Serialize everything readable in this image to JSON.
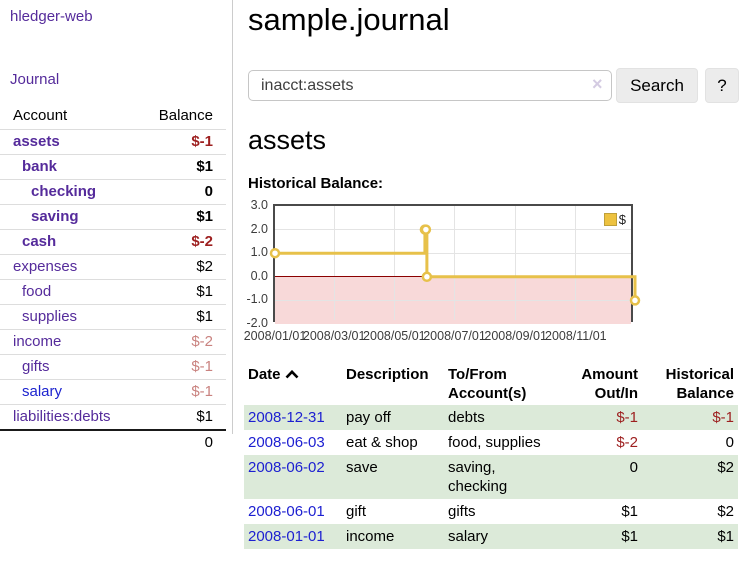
{
  "app": {
    "brand": "hledger-web",
    "nav": {
      "journal": "Journal"
    }
  },
  "sidebar": {
    "columns": {
      "account": "Account",
      "balance": "Balance"
    },
    "accounts": [
      {
        "name": "assets",
        "indent": 1,
        "bold": true,
        "balance": "$-1",
        "balance_style": "neg",
        "link_style": "purple"
      },
      {
        "name": "bank",
        "indent": 2,
        "bold": true,
        "balance": "$1",
        "balance_style": "plain",
        "link_style": "purple"
      },
      {
        "name": "checking",
        "indent": 3,
        "bold": true,
        "balance": "0",
        "balance_style": "plain",
        "link_style": "purple"
      },
      {
        "name": "saving",
        "indent": 3,
        "bold": true,
        "balance": "$1",
        "balance_style": "plain",
        "link_style": "purple"
      },
      {
        "name": "cash",
        "indent": 2,
        "bold": true,
        "balance": "$-2",
        "balance_style": "neg",
        "link_style": "purple"
      },
      {
        "name": "expenses",
        "indent": 1,
        "bold": false,
        "balance": "$2",
        "balance_style": "plain",
        "link_style": "purple"
      },
      {
        "name": "food",
        "indent": 2,
        "bold": false,
        "balance": "$1",
        "balance_style": "plain",
        "link_style": "purple"
      },
      {
        "name": "supplies",
        "indent": 2,
        "bold": false,
        "balance": "$1",
        "balance_style": "plain",
        "link_style": "purple"
      },
      {
        "name": "income",
        "indent": 1,
        "bold": false,
        "balance": "$-2",
        "balance_style": "faded",
        "link_style": "purple"
      },
      {
        "name": "gifts",
        "indent": 2,
        "bold": false,
        "balance": "$-1",
        "balance_style": "faded",
        "link_style": "purple"
      },
      {
        "name": "salary",
        "indent": 2,
        "bold": false,
        "balance": "$-1",
        "balance_style": "faded",
        "link_style": "blue"
      },
      {
        "name": "liabilities:debts",
        "indent": 1,
        "bold": false,
        "balance": "$1",
        "balance_style": "plain",
        "link_style": "purple"
      }
    ],
    "total": "0"
  },
  "header": {
    "title": "sample.journal"
  },
  "search": {
    "value": "inacct:assets",
    "clear_icon": "×",
    "search_button": "Search",
    "help_button": "?"
  },
  "register": {
    "heading": "assets",
    "chart_title": "Historical Balance:",
    "columns": {
      "date": "Date",
      "description": "Description",
      "tofrom": "To/From Account(s)",
      "amount": "Amount Out/In",
      "balance": "Historical Balance"
    },
    "rows": [
      {
        "date": "2008-12-31",
        "description": "pay off",
        "tofrom": "debts",
        "amount": "$-1",
        "balance": "$-1"
      },
      {
        "date": "2008-06-03",
        "description": "eat & shop",
        "tofrom": "food, supplies",
        "amount": "$-2",
        "balance": "0"
      },
      {
        "date": "2008-06-02",
        "description": "save",
        "tofrom": "saving, checking",
        "amount": "0",
        "balance": "$2"
      },
      {
        "date": "2008-06-01",
        "description": "gift",
        "tofrom": "gifts",
        "amount": "$1",
        "balance": "$2"
      },
      {
        "date": "2008-01-01",
        "description": "income",
        "tofrom": "salary",
        "amount": "$1",
        "balance": "$1"
      }
    ]
  },
  "chart_data": {
    "type": "line",
    "step": true,
    "title": "Historical Balance:",
    "series": [
      {
        "name": "$",
        "color": "#E7C14A",
        "points": [
          [
            "2008-01-01",
            1
          ],
          [
            "2008-06-01",
            2
          ],
          [
            "2008-06-02",
            2
          ],
          [
            "2008-06-03",
            0
          ],
          [
            "2008-12-31",
            -1
          ]
        ]
      }
    ],
    "x_range": [
      "2008-01-01",
      "2008-12-31"
    ],
    "x_ticks": [
      {
        "date": "2008-01-01",
        "label": "2008/01/01"
      },
      {
        "date": "2008-03-01",
        "label": "2008/03/01"
      },
      {
        "date": "2008-05-01",
        "label": "2008/05/01"
      },
      {
        "date": "2008-07-01",
        "label": "2008/07/01"
      },
      {
        "date": "2008-09-01",
        "label": "2008/09/01"
      },
      {
        "date": "2008-11-01",
        "label": "2008/11/01"
      }
    ],
    "ylim": [
      -2,
      3
    ],
    "y_ticks": [
      {
        "value": 3,
        "label": "3.0"
      },
      {
        "value": 2,
        "label": "2.0"
      },
      {
        "value": 1,
        "label": "1.0"
      },
      {
        "value": 0,
        "label": "0.0"
      },
      {
        "value": -1,
        "label": "-1.0"
      },
      {
        "value": -2,
        "label": "-2.0"
      }
    ],
    "legend_position": "top-right",
    "grid": true,
    "zero_line_color": "#8b0000",
    "negative_region_color": "#f8d9d9",
    "colors": {
      "marker_fill": "#ffffff",
      "plot_border": "#4a4a4a",
      "gridline": "#e4e4e4"
    }
  }
}
